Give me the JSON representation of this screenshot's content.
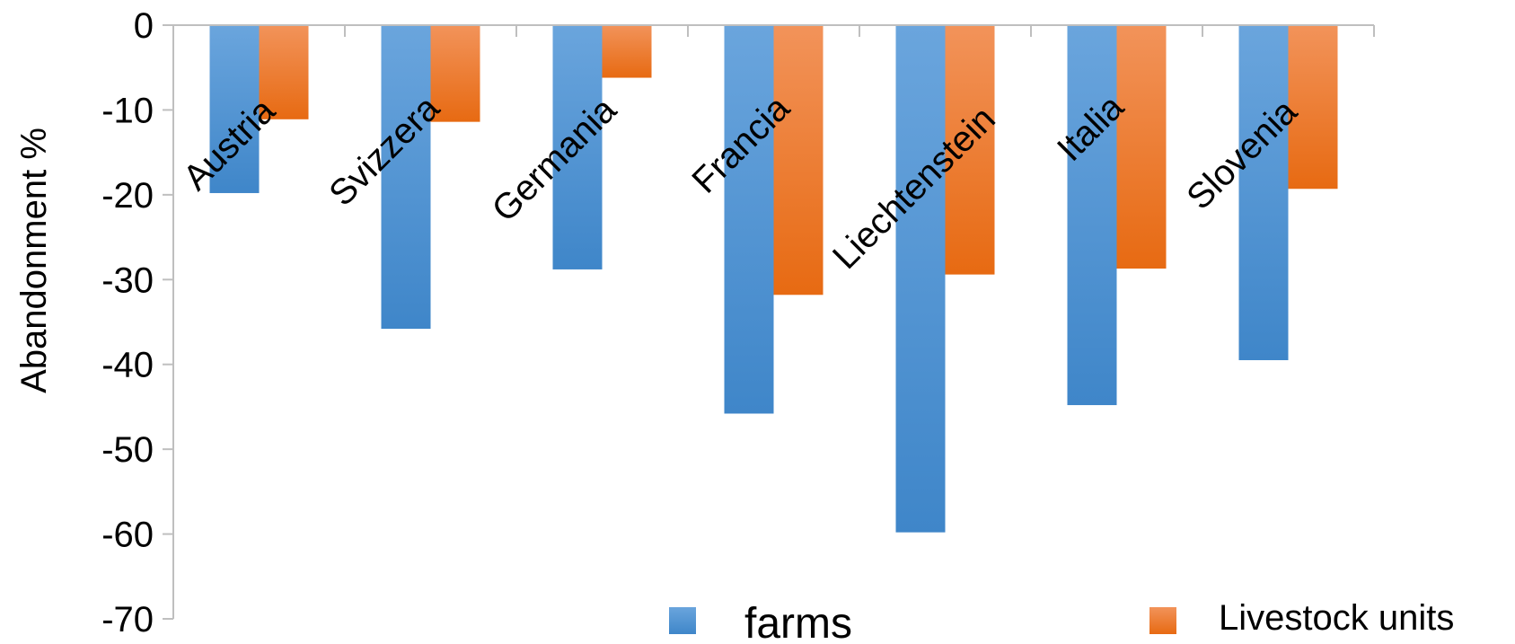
{
  "chart_data": {
    "type": "bar",
    "categories": [
      "Austria",
      "Svizzera",
      "Germania",
      "Francia",
      "Liechtenstein",
      "Italia",
      "Slovenia"
    ],
    "series": [
      {
        "name": "farms",
        "values": [
          -19.8,
          -35.8,
          -28.8,
          -45.8,
          -59.8,
          -44.8,
          -39.5
        ]
      },
      {
        "name": "Livestock units",
        "values": [
          -11.1,
          -11.4,
          -6.2,
          -31.8,
          -29.4,
          -28.7,
          -19.3
        ]
      }
    ],
    "title": "",
    "xlabel": "",
    "ylabel": "Abandonment %",
    "ylim": [
      -70,
      0
    ],
    "yticks": [
      0,
      -10,
      -20,
      -30,
      -40,
      -50,
      -60,
      -70
    ],
    "grid": false,
    "legend_position": "bottom",
    "colors": {
      "farms": "#5b9bd5",
      "livestock": "#ed7d31"
    }
  }
}
